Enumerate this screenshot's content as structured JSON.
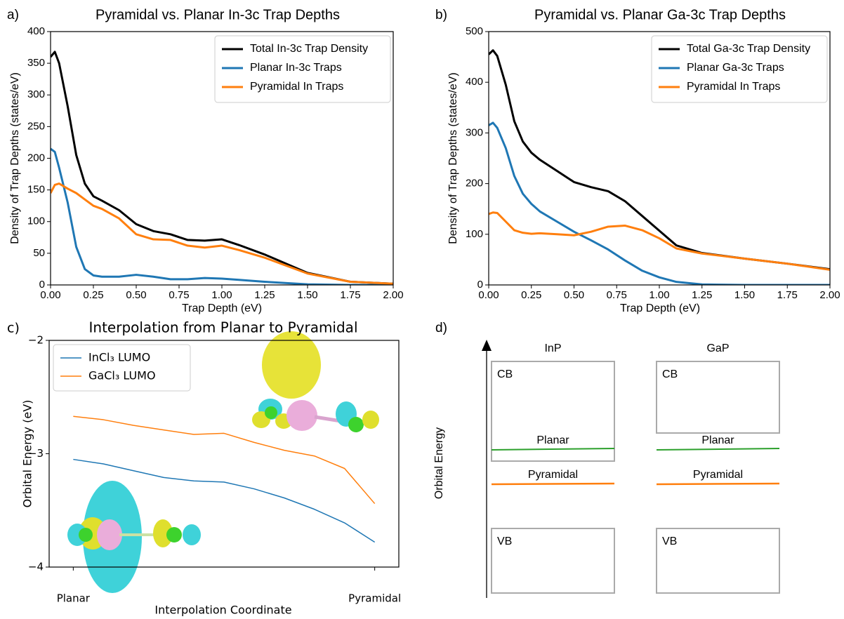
{
  "chart_data": [
    {
      "type": "line",
      "panel_label": "a)",
      "title": "Pyramidal vs. Planar In-3c Trap Depths",
      "xlabel": "Trap Depth (eV)",
      "ylabel": "Density of Trap Depths (states/eV)",
      "x": [
        0,
        0.025,
        0.05,
        0.1,
        0.15,
        0.2,
        0.25,
        0.3,
        0.4,
        0.5,
        0.6,
        0.7,
        0.8,
        0.9,
        1.0,
        1.1,
        1.25,
        1.5,
        1.75,
        2.0
      ],
      "series": [
        {
          "name": "Total In-3c Trap Density",
          "color": "#000000",
          "values": [
            360,
            368,
            350,
            282,
            205,
            160,
            140,
            133,
            118,
            96,
            85,
            80,
            71,
            70,
            72,
            63,
            48,
            19,
            5,
            2
          ]
        },
        {
          "name": "Planar In-3c Traps",
          "color": "#1f77b4",
          "values": [
            215,
            210,
            185,
            130,
            60,
            25,
            15,
            13,
            13,
            16,
            13,
            9,
            9,
            11,
            10,
            8,
            5,
            1,
            0,
            0
          ]
        },
        {
          "name": "Pyramidal In Traps",
          "color": "#ff7f0e",
          "values": [
            145,
            158,
            160,
            152,
            145,
            135,
            125,
            120,
            105,
            80,
            72,
            71,
            62,
            59,
            62,
            55,
            43,
            18,
            5,
            2
          ]
        }
      ],
      "xlim": [
        0,
        2
      ],
      "ylim": [
        0,
        400
      ],
      "xticks": [
        {
          "value": 0,
          "label": "0.00"
        },
        {
          "value": 0.25,
          "label": "0.25"
        },
        {
          "value": 0.5,
          "label": "0.50"
        },
        {
          "value": 0.75,
          "label": "0.75"
        },
        {
          "value": 1,
          "label": "1.00"
        },
        {
          "value": 1.25,
          "label": "1.25"
        },
        {
          "value": 1.5,
          "label": "1.50"
        },
        {
          "value": 1.75,
          "label": "1.75"
        },
        {
          "value": 2,
          "label": "2.00"
        }
      ],
      "yticks": [
        0,
        50,
        100,
        150,
        200,
        250,
        300,
        350,
        400
      ],
      "legend": "upper right"
    },
    {
      "type": "line",
      "panel_label": "b)",
      "title": "Pyramidal vs. Planar Ga-3c Trap Depths",
      "xlabel": "Trap Depth (eV)",
      "ylabel": "Density of Trap Depths (states/eV)",
      "x": [
        0,
        0.025,
        0.05,
        0.1,
        0.15,
        0.2,
        0.25,
        0.3,
        0.4,
        0.5,
        0.6,
        0.7,
        0.8,
        0.9,
        1.0,
        1.1,
        1.25,
        1.5,
        1.75,
        2.0
      ],
      "series": [
        {
          "name": "Total Ga-3c Trap Density",
          "color": "#000000",
          "values": [
            455,
            463,
            452,
            395,
            323,
            283,
            261,
            247,
            225,
            203,
            193,
            185,
            165,
            136,
            107,
            78,
            63,
            52,
            42,
            31
          ]
        },
        {
          "name": "Planar Ga-3c Traps",
          "color": "#1f77b4",
          "values": [
            315,
            320,
            310,
            270,
            215,
            180,
            160,
            145,
            125,
            105,
            88,
            70,
            48,
            28,
            15,
            6,
            1,
            0,
            0,
            0
          ]
        },
        {
          "name": "Pyramidal In Traps",
          "color": "#ff7f0e",
          "values": [
            140,
            143,
            142,
            125,
            108,
            103,
            101,
            102,
            100,
            98,
            105,
            115,
            117,
            108,
            92,
            72,
            62,
            52,
            42,
            30
          ]
        }
      ],
      "xlim": [
        0,
        2
      ],
      "ylim": [
        0,
        500
      ],
      "xticks": [
        {
          "value": 0,
          "label": "0.00"
        },
        {
          "value": 0.25,
          "label": "0.25"
        },
        {
          "value": 0.5,
          "label": "0.50"
        },
        {
          "value": 0.75,
          "label": "0.75"
        },
        {
          "value": 1,
          "label": "1.00"
        },
        {
          "value": 1.25,
          "label": "1.25"
        },
        {
          "value": 1.5,
          "label": "1.50"
        },
        {
          "value": 1.75,
          "label": "1.75"
        },
        {
          "value": 2,
          "label": "2.00"
        }
      ],
      "yticks": [
        0,
        100,
        200,
        300,
        400,
        500
      ],
      "legend": "upper right"
    },
    {
      "type": "line",
      "panel_label": "c)",
      "title": "Interpolation from Planar to Pyramidal",
      "xlabel": "Interpolation Coordinate",
      "ylabel": "Orbital Energy (eV)",
      "x": [
        0,
        0.1,
        0.2,
        0.3,
        0.4,
        0.5,
        0.6,
        0.7,
        0.8,
        0.9,
        1.0
      ],
      "series": [
        {
          "name": "InCl₃ LUMO",
          "color": "#1f77b4",
          "values": [
            -3.05,
            -3.09,
            -3.15,
            -3.21,
            -3.24,
            -3.25,
            -3.31,
            -3.39,
            -3.49,
            -3.61,
            -3.78
          ]
        },
        {
          "name": "GaCl₃ LUMO",
          "color": "#ff7f0e",
          "values": [
            -2.67,
            -2.7,
            -2.75,
            -2.79,
            -2.83,
            -2.82,
            -2.9,
            -2.97,
            -3.02,
            -3.13,
            -3.44
          ]
        }
      ],
      "xlim": [
        -0.08,
        1.08
      ],
      "ylim": [
        -4,
        -2
      ],
      "xticks": [
        {
          "value": 0,
          "label": "Planar"
        },
        {
          "value": 1,
          "label": "Pyramidal"
        }
      ],
      "yticks": [
        {
          "value": -2,
          "label": "−2"
        },
        {
          "value": -3,
          "label": "−3"
        },
        {
          "value": -4,
          "label": "−4"
        }
      ],
      "legend": "upper left"
    }
  ],
  "diagram": {
    "panel_label": "d)",
    "ylabel": "Orbital Energy",
    "planar_color": "#2ca02c",
    "pyramidal_color": "#ff7f0e",
    "columns": [
      {
        "title": "InP",
        "cb": "CB",
        "vb": "VB",
        "planar": "Planar",
        "pyramidal": "Pyramidal"
      },
      {
        "title": "GaP",
        "cb": "CB",
        "vb": "VB",
        "planar": "Planar",
        "pyramidal": "Pyramidal"
      }
    ]
  }
}
